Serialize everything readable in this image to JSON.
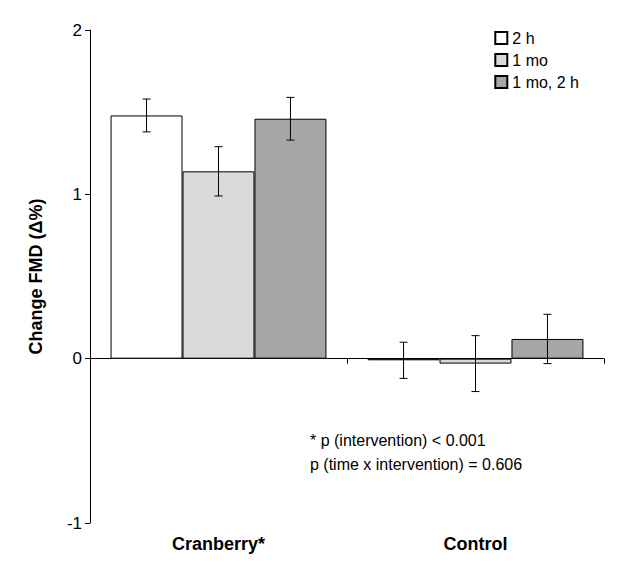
{
  "chart_data": {
    "type": "bar",
    "y_label": "Change FMD (Δ%)",
    "categories": [
      "Cranberry*",
      "Control"
    ],
    "series": [
      {
        "name": "2 h",
        "color": "#ffffff",
        "values": [
          1.48,
          -0.01
        ],
        "errors": [
          0.1,
          0.11
        ]
      },
      {
        "name": "1 mo",
        "color": "#d9d9d9",
        "values": [
          1.14,
          -0.03
        ],
        "errors": [
          0.15,
          0.17
        ]
      },
      {
        "name": "1 mo, 2 h",
        "color": "#a6a6a6",
        "values": [
          1.46,
          0.12
        ],
        "errors": [
          0.13,
          0.15
        ]
      }
    ],
    "annotations": [
      "* p (intervention) < 0.001",
      "p (time x intervention) = 0.606"
    ],
    "ylim": [
      -1,
      2
    ],
    "yticks": [
      -1,
      0,
      1,
      2
    ],
    "grid": false,
    "legend": "upper right"
  }
}
